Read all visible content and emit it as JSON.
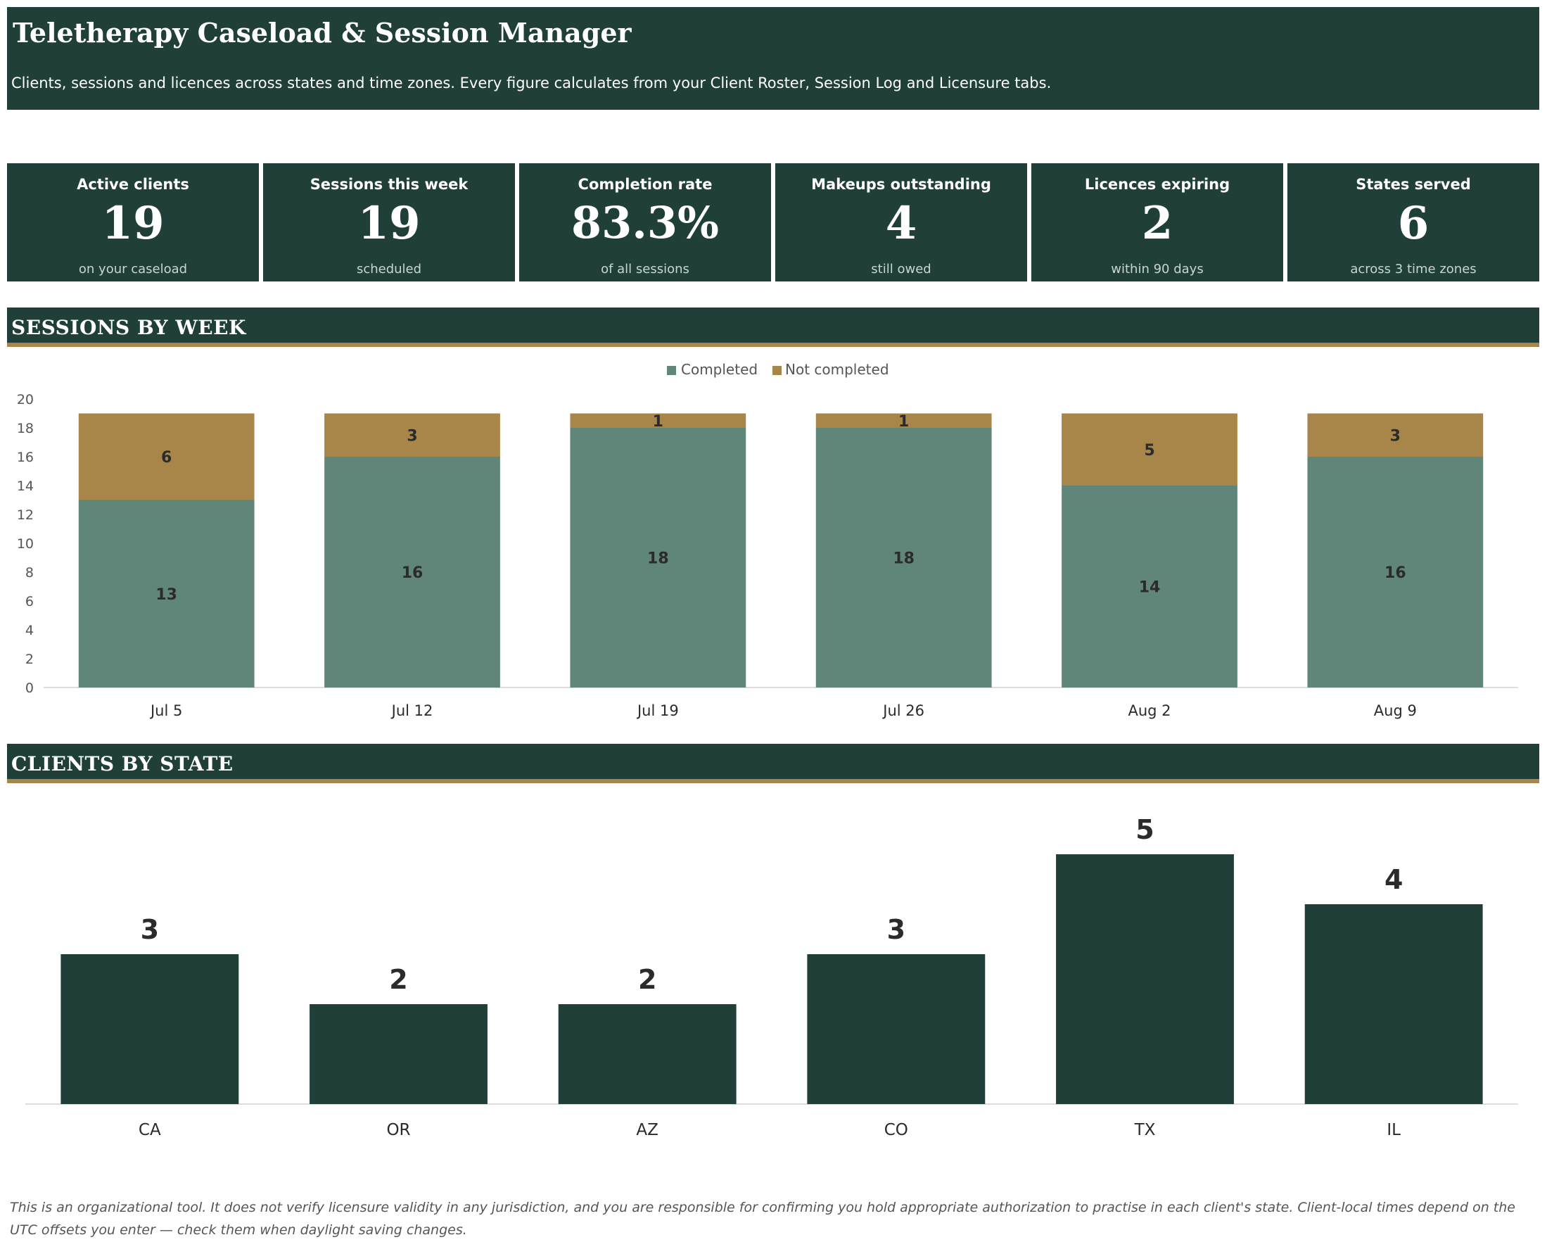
{
  "header": {
    "title": "Teletherapy Caseload & Session Manager",
    "subtitle": "Clients, sessions and licences across states and time zones. Every figure calculates from your Client Roster, Session Log and Licensure tabs."
  },
  "kpis": [
    {
      "label": "Active clients",
      "value": "19",
      "note": "on your caseload"
    },
    {
      "label": "Sessions this week",
      "value": "19",
      "note": "scheduled"
    },
    {
      "label": "Completion rate",
      "value": "83.3%",
      "note": "of all sessions"
    },
    {
      "label": "Makeups outstanding",
      "value": "4",
      "note": "still owed"
    },
    {
      "label": "Licences expiring",
      "value": "2",
      "note": "within 90 days"
    },
    {
      "label": "States served",
      "value": "6",
      "note": "across 3 time zones"
    }
  ],
  "sections": {
    "sessions_by_week": "SESSIONS BY WEEK",
    "clients_by_state": "CLIENTS BY STATE"
  },
  "colors": {
    "dark_green": "#1f3f38",
    "completed": "#5f8678",
    "not_completed": "#a88649"
  },
  "chart_data": [
    {
      "type": "bar",
      "stacked": true,
      "categories": [
        "Jul 5",
        "Jul 12",
        "Jul 19",
        "Jul 26",
        "Aug 2",
        "Aug 9"
      ],
      "series": [
        {
          "name": "Completed",
          "values": [
            13,
            16,
            18,
            18,
            14,
            16
          ],
          "color": "#5f8678"
        },
        {
          "name": "Not completed",
          "values": [
            6,
            3,
            1,
            1,
            5,
            3
          ],
          "color": "#a88649"
        }
      ],
      "ylim": [
        0,
        20
      ],
      "yticks": [
        0,
        2,
        4,
        6,
        8,
        10,
        12,
        14,
        16,
        18,
        20
      ],
      "legend": "top-center",
      "data_labels": true,
      "grid": false
    },
    {
      "type": "bar",
      "categories": [
        "CA",
        "OR",
        "AZ",
        "CO",
        "TX",
        "IL"
      ],
      "values": [
        3,
        2,
        2,
        3,
        5,
        4
      ],
      "color": "#1f3f38",
      "data_labels": true,
      "y_axis_shown": false,
      "grid": false
    }
  ],
  "footer": {
    "disclaimer": "This is an organizational tool. It does not verify licensure validity in any jurisdiction, and you are responsible for confirming you hold appropriate authorization to practise in each client's state. Client-local times depend on the UTC offsets you enter — check them when daylight saving changes."
  }
}
